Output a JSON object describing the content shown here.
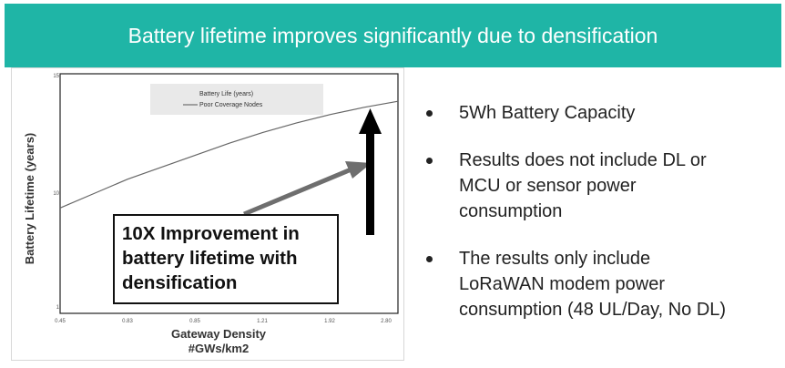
{
  "header": {
    "title": "Battery lifetime improves significantly due to densification"
  },
  "chart_data": {
    "type": "line",
    "ylabel": "Battery Lifetime (years)",
    "xlabel_line1": "Gateway Density",
    "xlabel_line2": "#GWs/km2",
    "x_ticks": [
      "0.45",
      "0.83",
      "0.85",
      "1.21",
      "1.92",
      "2.80"
    ],
    "y_ticks": [
      "15",
      "10",
      "1"
    ],
    "legend": {
      "position": "top",
      "line1": "Battery Life (years)",
      "line2": "Poor Coverage Nodes"
    },
    "series": [
      {
        "x_norm": [
          0,
          0.1,
          0.2,
          0.3,
          0.4,
          0.5,
          0.6,
          0.7,
          0.8,
          0.9,
          1.0
        ],
        "y_norm": [
          0.44,
          0.5,
          0.56,
          0.61,
          0.66,
          0.71,
          0.755,
          0.795,
          0.83,
          0.86,
          0.885
        ]
      }
    ],
    "colors": {
      "line": "#666666",
      "arrow_gray": "#6e6e6e",
      "arrow_black": "#000000"
    }
  },
  "callout": {
    "line1": "10X Improvement in",
    "line2": "battery lifetime with",
    "line3": "densification"
  },
  "bullets": [
    {
      "lines": [
        "5Wh Battery Capacity"
      ]
    },
    {
      "lines": [
        "Results does not include DL or",
        "MCU or sensor power",
        "consumption"
      ]
    },
    {
      "lines": [
        "The results only include",
        "LoRaWAN modem power",
        "consumption (48 UL/Day, No DL)"
      ]
    }
  ]
}
